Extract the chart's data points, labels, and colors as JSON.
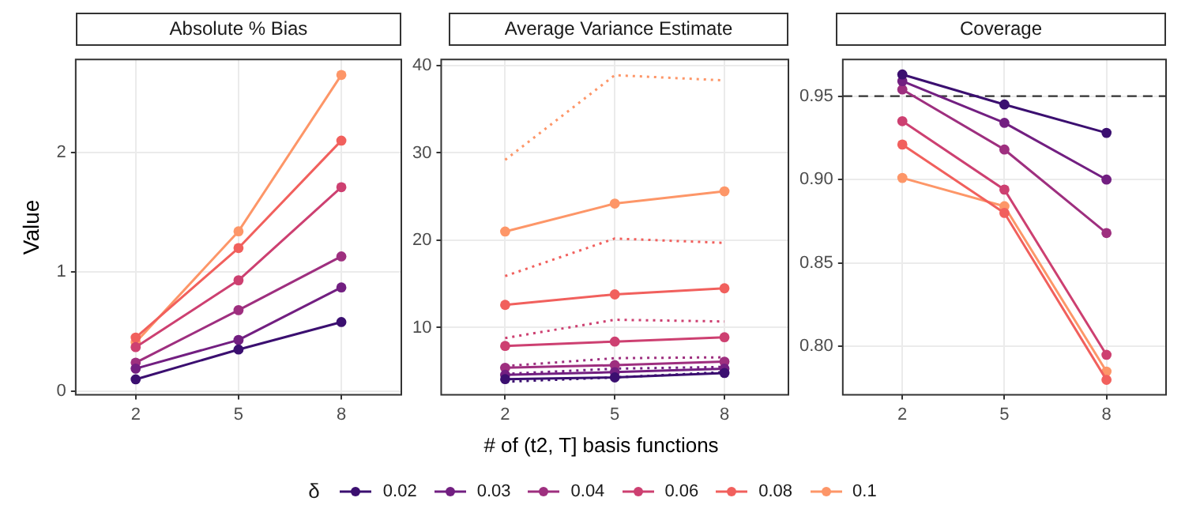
{
  "chart_data": [
    {
      "type": "line",
      "title": "Absolute % Bias",
      "ylabel": "Value",
      "legend_title": "δ",
      "legend": "bottom",
      "x": [
        2,
        5,
        8
      ],
      "xlim": [
        0.25,
        9.75
      ],
      "xticks": [
        2,
        5,
        8
      ],
      "ylim": [
        -0.03,
        2.78
      ],
      "yticks": [
        0,
        1,
        2
      ],
      "grid": true,
      "marker": "circle",
      "line_style": "solid",
      "series": [
        {
          "name": "0.02",
          "color": "#3b0f70",
          "values": [
            0.1,
            0.35,
            0.58
          ]
        },
        {
          "name": "0.03",
          "color": "#721f81",
          "values": [
            0.19,
            0.43,
            0.87
          ]
        },
        {
          "name": "0.04",
          "color": "#9e2f7f",
          "values": [
            0.24,
            0.68,
            1.13
          ]
        },
        {
          "name": "0.06",
          "color": "#cd4071",
          "values": [
            0.37,
            0.93,
            1.71
          ]
        },
        {
          "name": "0.08",
          "color": "#f1605d",
          "values": [
            0.45,
            1.2,
            2.1
          ]
        },
        {
          "name": "0.1",
          "color": "#fd9668",
          "values": [
            0.41,
            1.34,
            2.65
          ]
        }
      ]
    },
    {
      "type": "line",
      "title": "Average Variance Estimate",
      "xlabel": "# of (t2, T] basis functions",
      "x": [
        2,
        5,
        8
      ],
      "xlim": [
        0.25,
        9.75
      ],
      "xticks": [
        2,
        5,
        8
      ],
      "ylim": [
        2.3,
        40.7
      ],
      "yticks": [
        10,
        20,
        30,
        40
      ],
      "grid": true,
      "marker": "circle",
      "line_style": "solid",
      "series": [
        {
          "name": "0.02",
          "color": "#3b0f70",
          "values": [
            4.1,
            4.3,
            4.8
          ]
        },
        {
          "name": "0.03",
          "color": "#721f81",
          "values": [
            4.6,
            4.9,
            5.3
          ]
        },
        {
          "name": "0.04",
          "color": "#9e2f7f",
          "values": [
            5.4,
            5.7,
            6.1
          ]
        },
        {
          "name": "0.06",
          "color": "#cd4071",
          "values": [
            7.9,
            8.4,
            8.9
          ]
        },
        {
          "name": "0.08",
          "color": "#f1605d",
          "values": [
            12.6,
            13.8,
            14.5
          ]
        },
        {
          "name": "0.1",
          "color": "#fd9668",
          "values": [
            21.0,
            24.2,
            25.6
          ]
        },
        {
          "color": "#3b0f70",
          "line_style": "dotted",
          "marker": "none",
          "values": [
            3.8,
            4.3,
            4.9
          ]
        },
        {
          "color": "#721f81",
          "line_style": "dotted",
          "marker": "none",
          "values": [
            4.7,
            5.3,
            5.5
          ]
        },
        {
          "color": "#9e2f7f",
          "line_style": "dotted",
          "marker": "none",
          "values": [
            5.6,
            6.5,
            6.6
          ]
        },
        {
          "color": "#cd4071",
          "line_style": "dotted",
          "marker": "none",
          "values": [
            8.8,
            10.9,
            10.7
          ]
        },
        {
          "color": "#f1605d",
          "line_style": "dotted",
          "marker": "none",
          "values": [
            15.9,
            20.2,
            19.7
          ]
        },
        {
          "color": "#fd9668",
          "line_style": "dotted",
          "marker": "none",
          "values": [
            29.2,
            38.9,
            38.3
          ]
        }
      ]
    },
    {
      "type": "line",
      "title": "Coverage",
      "x": [
        2,
        5,
        8
      ],
      "xlim": [
        0.25,
        9.75
      ],
      "xticks": [
        2,
        5,
        8
      ],
      "ylim": [
        0.771,
        0.972
      ],
      "yticks": [
        {
          "value": 0.8,
          "label": "0.80"
        },
        0.85,
        {
          "value": 0.9,
          "label": "0.90"
        },
        0.95
      ],
      "grid": true,
      "marker": "circle",
      "line_style": "solid",
      "ref_lines": [
        {
          "axis": "y",
          "value": 0.95,
          "color": "#333333",
          "line_style": "dashed"
        }
      ],
      "series": [
        {
          "name": "0.02",
          "color": "#3b0f70",
          "values": [
            0.963,
            0.945,
            0.928
          ]
        },
        {
          "name": "0.03",
          "color": "#721f81",
          "values": [
            0.959,
            0.934,
            0.9
          ]
        },
        {
          "name": "0.04",
          "color": "#9e2f7f",
          "values": [
            0.954,
            0.918,
            0.868
          ]
        },
        {
          "name": "0.06",
          "color": "#cd4071",
          "values": [
            0.935,
            0.894,
            0.795
          ]
        },
        {
          "name": "0.08",
          "color": "#f1605d",
          "values": [
            0.921,
            0.88,
            0.78
          ]
        },
        {
          "name": "0.1",
          "color": "#fd9668",
          "values": [
            0.901,
            0.884,
            0.785
          ]
        }
      ]
    }
  ]
}
